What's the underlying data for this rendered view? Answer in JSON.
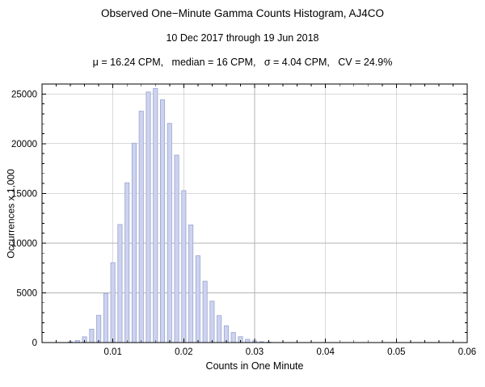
{
  "chart_data": {
    "type": "bar",
    "title": "Observed One−Minute Gamma Counts Histogram, AJ4CO",
    "subtitle": "10 Dec 2017 through 19 Jun 2018",
    "stats_line": "μ = 16.24 CPM,   median = 16 CPM,   σ = 4.04 CPM,   CV = 24.9%",
    "xlabel": "Counts in One Minute",
    "ylabel": "Occurrences x 1,000",
    "xlim": [
      0,
      0.06
    ],
    "ylim": [
      0,
      26000
    ],
    "grid": true,
    "legend": "none",
    "x_ticks": [
      0.01,
      0.02,
      0.03,
      0.04,
      0.05,
      0.06
    ],
    "x_tick_labels": [
      "0.01",
      "0.02",
      "0.03",
      "0.04",
      "0.05",
      "0.06"
    ],
    "x_minor_step": 0.002,
    "y_ticks": [
      0,
      5000,
      10000,
      15000,
      20000,
      25000
    ],
    "y_tick_labels": [
      "0",
      "5000",
      "10000",
      "15000",
      "20000",
      "25000"
    ],
    "y_minor_step": 1000,
    "bar_width": 0.0006,
    "colors": {
      "bar_fill": "#cdd3ee",
      "bar_edge": "#9aa4d2",
      "grid": "#b3b3b3",
      "frame": "#000000"
    },
    "x": [
      0.004,
      0.005,
      0.006,
      0.007,
      0.008,
      0.009,
      0.01,
      0.011,
      0.012,
      0.013,
      0.014,
      0.015,
      0.016,
      0.017,
      0.018,
      0.019,
      0.02,
      0.021,
      0.022,
      0.023,
      0.024,
      0.025,
      0.026,
      0.027,
      0.028,
      0.029,
      0.03,
      0.031,
      0.032
    ],
    "values": [
      66,
      215,
      580,
      1349,
      2742,
      4943,
      8037,
      11870,
      16070,
      20050,
      23270,
      25200,
      25550,
      24410,
      22040,
      18850,
      15280,
      11830,
      8730,
      6170,
      4170,
      2710,
      1690,
      1016,
      590,
      331,
      179,
      94,
      47
    ]
  }
}
